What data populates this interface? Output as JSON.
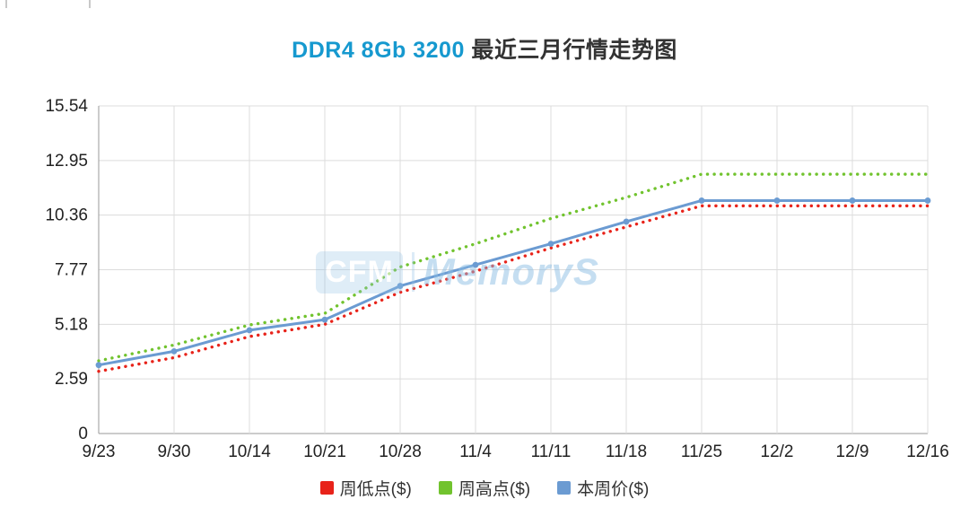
{
  "page": {
    "title_product": "DDR4 8Gb 3200",
    "title_suffix": " 最近三月行情走势图",
    "title_product_color": "#1699cf"
  },
  "watermark": {
    "brand": "CFM",
    "brand2": "MemoryS"
  },
  "chart_data": {
    "type": "line",
    "title": "DDR4 8Gb 3200 最近三月行情走势图",
    "categories": [
      "9/23",
      "9/30",
      "10/14",
      "10/21",
      "10/28",
      "11/4",
      "11/11",
      "11/18",
      "11/25",
      "12/2",
      "12/9",
      "12/16"
    ],
    "ylim": [
      0,
      15.54
    ],
    "yticks": [
      0,
      2.59,
      5.18,
      7.77,
      10.36,
      12.95,
      15.54
    ],
    "ytick_labels": [
      "0",
      "2.59",
      "5.18",
      "7.77",
      "10.36",
      "12.95",
      "15.54"
    ],
    "xlabel": "",
    "ylabel": "",
    "grid": true,
    "legend_position": "bottom",
    "series": [
      {
        "name": "周低点($)",
        "color": "#e8231a",
        "style": "dotted",
        "markers": false,
        "values": [
          2.95,
          3.6,
          4.6,
          5.18,
          6.7,
          7.7,
          8.8,
          9.8,
          10.8,
          10.8,
          10.8,
          10.8
        ]
      },
      {
        "name": "周高点($)",
        "color": "#71c32e",
        "style": "dotted",
        "markers": false,
        "values": [
          3.45,
          4.2,
          5.15,
          5.7,
          7.9,
          9.0,
          10.2,
          11.2,
          12.3,
          12.3,
          12.3,
          12.3
        ]
      },
      {
        "name": "本周价($)",
        "color": "#6b9bd2",
        "style": "solid",
        "markers": true,
        "values": [
          3.25,
          3.9,
          4.9,
          5.4,
          7.0,
          8.0,
          9.0,
          10.05,
          11.05,
          11.05,
          11.05,
          11.05
        ]
      }
    ]
  }
}
